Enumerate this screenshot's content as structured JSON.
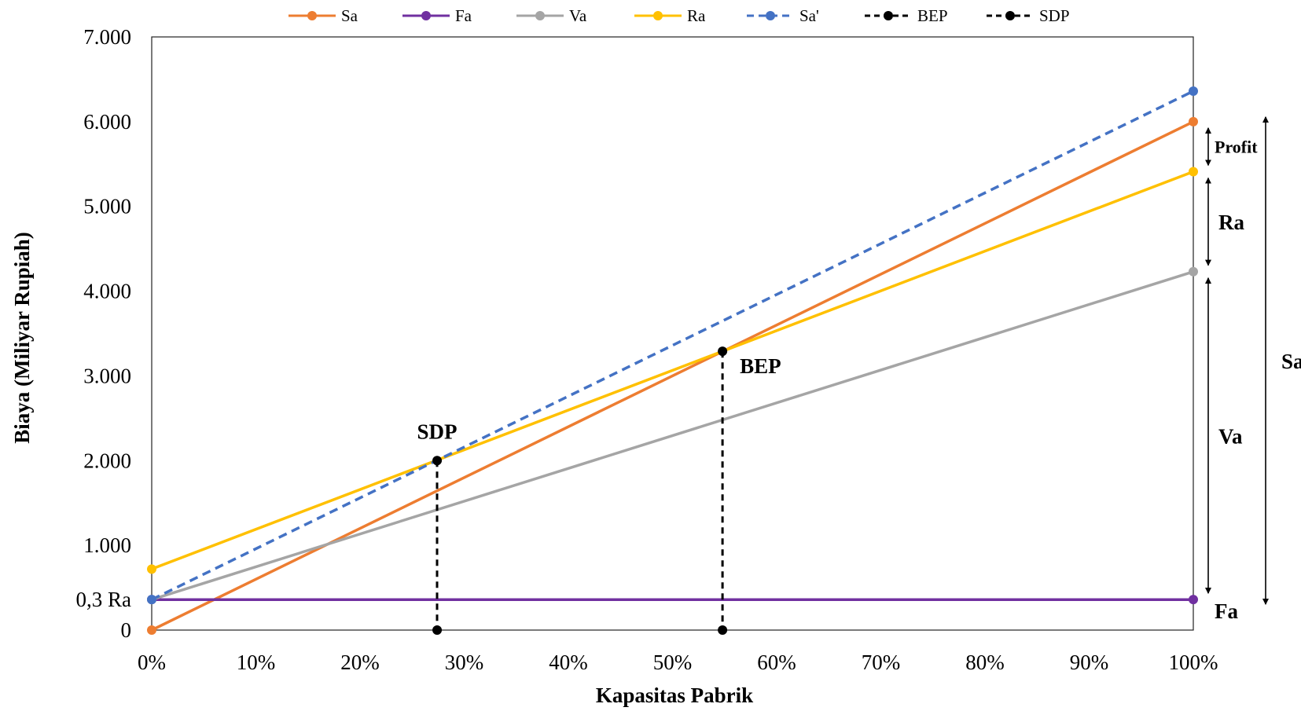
{
  "chart_data": {
    "type": "line",
    "xlabel": "Kapasitas Pabrik",
    "ylabel": "Biaya (Miliyar Rupiah)",
    "xlim": [
      0,
      100
    ],
    "ylim": [
      0,
      7000
    ],
    "xticks": [
      {
        "value": 0,
        "label": "0%"
      },
      {
        "value": 10,
        "label": "10%"
      },
      {
        "value": 20,
        "label": "20%"
      },
      {
        "value": 30,
        "label": "30%"
      },
      {
        "value": 40,
        "label": "40%"
      },
      {
        "value": 50,
        "label": "50%"
      },
      {
        "value": 60,
        "label": "60%"
      },
      {
        "value": 70,
        "label": "70%"
      },
      {
        "value": 80,
        "label": "80%"
      },
      {
        "value": 90,
        "label": "90%"
      },
      {
        "value": 100,
        "label": "100%"
      }
    ],
    "yticks": [
      {
        "value": 0,
        "label": "0"
      },
      {
        "value": 360,
        "label": "0,3 Ra"
      },
      {
        "value": 1000,
        "label": "1.000"
      },
      {
        "value": 2000,
        "label": "2.000"
      },
      {
        "value": 3000,
        "label": "3.000"
      },
      {
        "value": 4000,
        "label": "4.000"
      },
      {
        "value": 5000,
        "label": "5.000"
      },
      {
        "value": 6000,
        "label": "6.000"
      },
      {
        "value": 7000,
        "label": "7.000"
      }
    ],
    "legend_position": "top",
    "series": [
      {
        "name": "Sa",
        "color": "#ED7D31",
        "dash": false,
        "points": [
          [
            0,
            0
          ],
          [
            100,
            6000
          ]
        ]
      },
      {
        "name": "Fa",
        "color": "#7030A0",
        "dash": false,
        "points": [
          [
            0,
            360
          ],
          [
            100,
            360
          ]
        ]
      },
      {
        "name": "Va",
        "color": "#A5A5A5",
        "dash": false,
        "points": [
          [
            0,
            360
          ],
          [
            100,
            4230
          ]
        ]
      },
      {
        "name": "Ra",
        "color": "#FFC000",
        "dash": false,
        "points": [
          [
            0,
            720
          ],
          [
            100,
            5410
          ]
        ]
      },
      {
        "name": "Sa'",
        "color": "#4472C4",
        "dash": true,
        "points": [
          [
            0,
            360
          ],
          [
            100,
            6360
          ]
        ]
      },
      {
        "name": "BEP",
        "color": "#000000",
        "dash": true,
        "points": [
          [
            54.8,
            3290
          ],
          [
            54.8,
            0
          ]
        ]
      },
      {
        "name": "SDP",
        "color": "#000000",
        "dash": true,
        "points": [
          [
            27.4,
            2000
          ],
          [
            27.4,
            0
          ]
        ]
      }
    ],
    "annotations": [
      {
        "text": "BEP",
        "x": 54.8,
        "y": 3290
      },
      {
        "text": "SDP",
        "x": 27.4,
        "y": 2000
      }
    ],
    "range_labels": [
      {
        "text": "Profit",
        "from": 5410,
        "to": 6000
      },
      {
        "text": "Ra",
        "from": 4230,
        "to": 5410
      },
      {
        "text": "Va",
        "from": 360,
        "to": 4230
      },
      {
        "text": "Fa",
        "value": 360
      },
      {
        "text": "Sa",
        "from": 360,
        "to": 6000
      }
    ]
  }
}
